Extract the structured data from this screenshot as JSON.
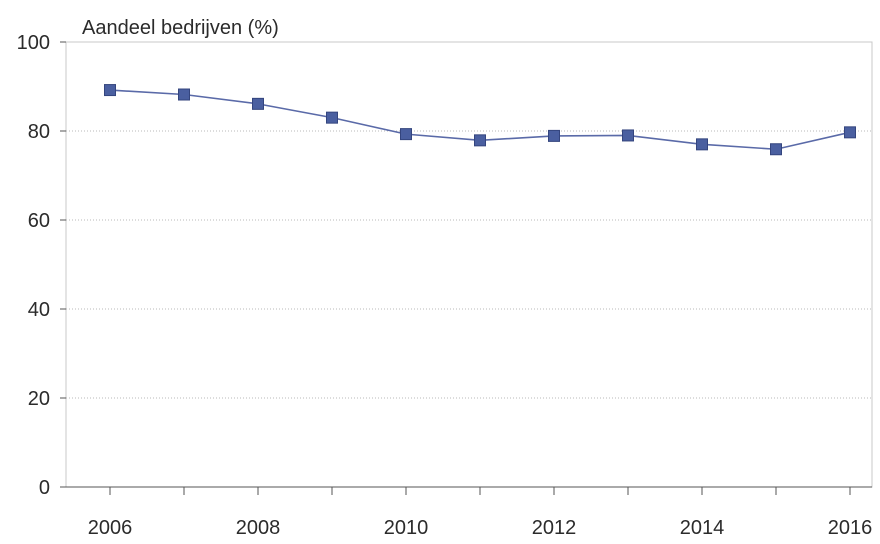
{
  "chart_data": {
    "type": "line",
    "ylabel": "Aandeel bedrijven (%)",
    "x": [
      2006,
      2007,
      2008,
      2009,
      2010,
      2011,
      2012,
      2013,
      2014,
      2015,
      2016
    ],
    "x_tick_labels": [
      "2006",
      "2008",
      "2010",
      "2012",
      "2014",
      "2016"
    ],
    "y_tick_labels": [
      "0",
      "20",
      "40",
      "60",
      "80",
      "100"
    ],
    "series": [
      {
        "values": [
          89.2,
          88.2,
          86.1,
          83.0,
          79.3,
          77.9,
          78.9,
          79.0,
          77.0,
          75.9,
          79.7
        ]
      }
    ],
    "ylim": [
      0,
      100
    ],
    "xlim": [
      2006,
      2016
    ],
    "grid": "horizontal dotted",
    "color": "#4a5fa0",
    "marker": "square"
  }
}
